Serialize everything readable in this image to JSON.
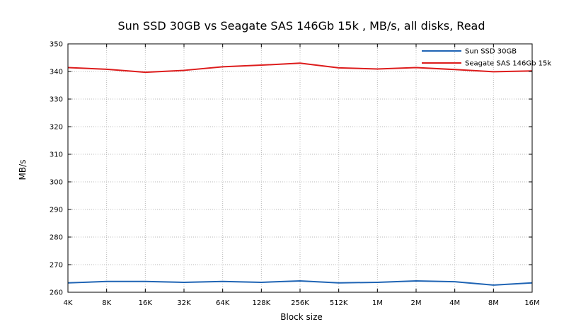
{
  "chart_data": {
    "type": "line",
    "title": "Sun SSD 30GB vs Seagate SAS 146Gb 15k , MB/s, all disks, Read",
    "xlabel": "Block size",
    "ylabel": "MB/s",
    "categories": [
      "4K",
      "8K",
      "16K",
      "32K",
      "64K",
      "128K",
      "256K",
      "512K",
      "1M",
      "2M",
      "4M",
      "8M",
      "16M"
    ],
    "ylim": [
      260,
      350
    ],
    "yticks": [
      260,
      270,
      280,
      290,
      300,
      310,
      320,
      330,
      340,
      350
    ],
    "grid": true,
    "legend_position": "top-right",
    "series": [
      {
        "name": "Sun SSD 30GB",
        "color": "#1f64b4",
        "values": [
          263.4,
          263.9,
          263.9,
          263.6,
          263.9,
          263.6,
          264.1,
          263.4,
          263.6,
          264.1,
          263.8,
          262.6,
          263.4
        ]
      },
      {
        "name": "Seagate SAS 146Gb 15k",
        "color": "#dd1c1c",
        "values": [
          341.4,
          340.8,
          339.7,
          340.4,
          341.7,
          342.3,
          343.0,
          341.3,
          340.9,
          341.4,
          340.7,
          339.9,
          340.2
        ]
      }
    ]
  }
}
